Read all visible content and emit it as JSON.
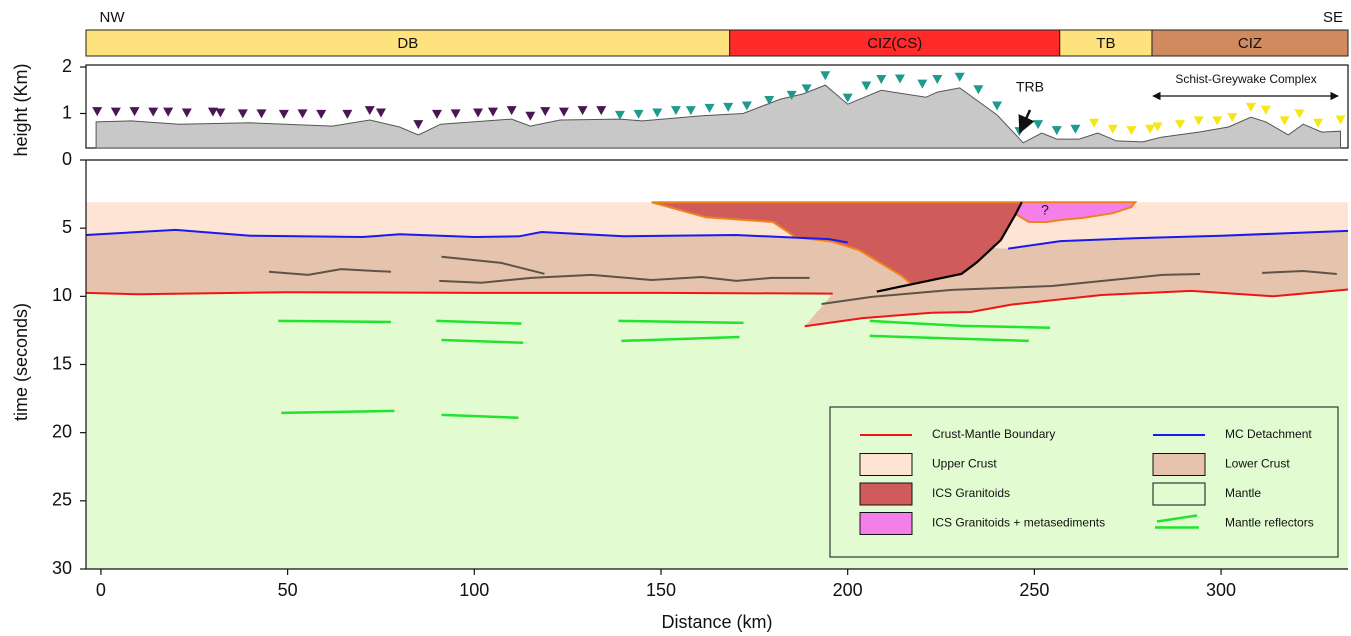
{
  "chart_data": {
    "type": "cross-section",
    "xlabel": "Distance (km)",
    "xlim": [
      -4,
      334
    ],
    "xticks": [
      0,
      50,
      100,
      150,
      200,
      250,
      300
    ],
    "left_label": "NW",
    "right_label": "SE",
    "zones": [
      {
        "label": "DB",
        "start": -4,
        "end": 168.4,
        "color": "#fde27e"
      },
      {
        "label": "CIZ(CS)",
        "start": 168.4,
        "end": 256.8,
        "color": "#ff2a2a"
      },
      {
        "label": "TB",
        "start": 256.8,
        "end": 281.5,
        "color": "#fde27e"
      },
      {
        "label": "CIZ",
        "start": 281.5,
        "end": 334,
        "color": "#d08a5e"
      }
    ],
    "topography": {
      "ylabel": "height (Km)",
      "ylim": [
        0,
        2
      ],
      "yticks": [
        0,
        1,
        2
      ],
      "color": "#c8c8c8",
      "trb_label": "TRB",
      "complex_label": "Schist-Greywake Complex",
      "x": [
        -1.3,
        8,
        21,
        40,
        62,
        72,
        80,
        85,
        91,
        110,
        115,
        123,
        139,
        145,
        161,
        172,
        182,
        188,
        194,
        200,
        209,
        221,
        224,
        230,
        240,
        247,
        252,
        256,
        262,
        267,
        272,
        279,
        284,
        294,
        302,
        308,
        312,
        318,
        322,
        327,
        332
      ],
      "values": [
        0.82,
        0.84,
        0.77,
        0.8,
        0.73,
        0.86,
        0.71,
        0.54,
        0.77,
        0.88,
        0.73,
        0.86,
        0.88,
        0.84,
        0.95,
        1.0,
        1.31,
        1.42,
        1.61,
        1.2,
        1.5,
        1.35,
        1.46,
        1.55,
        0.97,
        0.37,
        0.58,
        0.45,
        0.45,
        0.58,
        0.41,
        0.39,
        0.49,
        0.6,
        0.71,
        0.92,
        0.82,
        0.54,
        0.77,
        0.6,
        0.62
      ],
      "stations": [
        {
          "color": "#4b1654",
          "x": [
            -1,
            4,
            9,
            14,
            18,
            23,
            30,
            32,
            38,
            43,
            49,
            54,
            59,
            66,
            72,
            75,
            85,
            90,
            95,
            101,
            105,
            110,
            115,
            119,
            124,
            129,
            134
          ],
          "values": [
            1.03,
            1.02,
            1.03,
            1.02,
            1.02,
            1.0,
            1.02,
            1.0,
            0.98,
            0.98,
            0.97,
            0.98,
            0.97,
            0.97,
            1.05,
            1.0,
            0.75,
            0.97,
            0.98,
            1.0,
            1.02,
            1.05,
            0.93,
            1.03,
            1.02,
            1.05,
            1.05
          ]
        },
        {
          "color": "#1f9a8e",
          "x": [
            139,
            144,
            149,
            154,
            158,
            163,
            168,
            173,
            179,
            185,
            189,
            194,
            200,
            205,
            209,
            214,
            220,
            224,
            230,
            235,
            240,
            246,
            251,
            256,
            261
          ],
          "values": [
            0.95,
            0.97,
            1.0,
            1.05,
            1.05,
            1.1,
            1.12,
            1.15,
            1.27,
            1.38,
            1.52,
            1.8,
            1.32,
            1.58,
            1.72,
            1.73,
            1.62,
            1.72,
            1.77,
            1.5,
            1.15,
            0.6,
            0.75,
            0.62,
            0.65
          ]
        },
        {
          "color": "#f5e614",
          "x": [
            266,
            271,
            276,
            281,
            283,
            289,
            294,
            299,
            303,
            308,
            312,
            317,
            321,
            326,
            332
          ],
          "values": [
            0.78,
            0.65,
            0.62,
            0.65,
            0.7,
            0.75,
            0.83,
            0.83,
            0.9,
            1.12,
            1.06,
            0.83,
            0.98,
            0.78,
            0.85
          ]
        }
      ]
    },
    "section": {
      "ylabel": "time (seconds)",
      "ylim": [
        30,
        0
      ],
      "yticks": [
        5,
        10,
        15,
        20,
        25,
        30
      ],
      "question_label": "?",
      "edge_color": "#f0821e",
      "series": [
        {
          "name": "Crust-Mantle Boundary",
          "kind": "line",
          "color": "#f01414",
          "x": [
            -4,
            10,
            50,
            100,
            150,
            196,
            null,
            188.5,
            204,
            222.5,
            233,
            244,
            268,
            292,
            314,
            334
          ],
          "values": [
            9.75,
            9.85,
            9.7,
            9.75,
            9.75,
            9.8,
            null,
            12.2,
            11.6,
            11.2,
            11.15,
            10.6,
            9.9,
            9.6,
            10.0,
            9.5
          ]
        },
        {
          "name": "MC Detachment",
          "kind": "line",
          "color": "#1a1aee",
          "x": [
            -4,
            20,
            40,
            70,
            80,
            100,
            112,
            118,
            140,
            170,
            195,
            200,
            null,
            243,
            257,
            281,
            300,
            334
          ],
          "values": [
            5.5,
            5.13,
            5.55,
            5.65,
            5.45,
            5.65,
            5.6,
            5.28,
            5.6,
            5.5,
            5.8,
            6.05,
            null,
            6.5,
            5.95,
            5.7,
            5.55,
            5.2
          ]
        },
        {
          "name": "Upper Crust",
          "kind": "area",
          "color": "#fde4d4",
          "x": [
            -4,
            334,
            334,
            300,
            281,
            257,
            243,
            200,
            195,
            170,
            140,
            118,
            112,
            100,
            80,
            70,
            40,
            20,
            -4
          ],
          "values": [
            3.1,
            3.1,
            5.2,
            5.55,
            5.7,
            5.95,
            6.5,
            6.05,
            5.8,
            5.5,
            5.6,
            5.28,
            5.6,
            5.65,
            5.45,
            5.65,
            5.55,
            5.13,
            5.5
          ]
        },
        {
          "name": "Lower Crust",
          "kind": "area",
          "color": "#e6c3ad",
          "x": [
            -4,
            20,
            40,
            70,
            80,
            100,
            112,
            118,
            140,
            170,
            195,
            200,
            243,
            257,
            281,
            300,
            334,
            334,
            314,
            292,
            268,
            244,
            233,
            222.5,
            204,
            188.5,
            196,
            150,
            100,
            50,
            10,
            -4
          ],
          "values": [
            5.5,
            5.13,
            5.55,
            5.65,
            5.45,
            5.65,
            5.6,
            5.28,
            5.6,
            5.5,
            5.8,
            6.05,
            6.5,
            5.95,
            5.7,
            5.55,
            5.2,
            9.5,
            10.0,
            9.6,
            9.9,
            10.6,
            11.15,
            11.2,
            11.6,
            12.2,
            9.8,
            9.75,
            9.75,
            9.7,
            9.85,
            9.75
          ]
        },
        {
          "name": "ICS Granitoids",
          "kind": "area",
          "color": "#d05b5b",
          "edged": true,
          "x": [
            147.5,
            246.6,
            245,
            241,
            234.6,
            230.5,
            217,
            214.5,
            203,
            196,
            186,
            180,
            162
          ],
          "values": [
            3.1,
            3.1,
            3.96,
            5.87,
            7.5,
            8.35,
            9.1,
            8.5,
            6.6,
            6.0,
            5.65,
            4.55,
            4.2
          ]
        },
        {
          "name": "Mantle",
          "kind": "area",
          "color": "#e2fbd1",
          "x": [
            -4,
            10,
            50,
            100,
            150,
            196,
            188.5,
            204,
            222.5,
            233,
            244,
            268,
            292,
            314,
            334,
            334,
            -4
          ],
          "values": [
            9.75,
            9.85,
            9.7,
            9.75,
            9.75,
            9.8,
            12.2,
            11.6,
            11.2,
            11.15,
            10.6,
            9.9,
            9.6,
            10.0,
            9.5,
            30,
            30
          ]
        },
        {
          "name": "ICS Granitoids + metasediments",
          "kind": "area",
          "color": "#f57fe9",
          "edged": true,
          "x": [
            246.6,
            277,
            276,
            271,
            263,
            257,
            253.5,
            248.5,
            245
          ],
          "values": [
            3.1,
            3.1,
            3.45,
            3.9,
            4.25,
            4.4,
            4.55,
            4.55,
            3.96
          ]
        },
        {
          "name": "Mantle reflectors",
          "kind": "segments",
          "color": "#22e32e",
          "segments": [
            {
              "x": [
                47.5,
                77.7
              ],
              "values": [
                11.8,
                11.88
              ]
            },
            {
              "x": [
                89.8,
                112.6
              ],
              "values": [
                11.8,
                12.0
              ]
            },
            {
              "x": [
                91.2,
                113.1
              ],
              "values": [
                13.2,
                13.4
              ]
            },
            {
              "x": [
                138.6,
                172.1
              ],
              "values": [
                11.8,
                11.95
              ]
            },
            {
              "x": [
                139.4,
                171
              ],
              "values": [
                13.27,
                12.98
              ]
            },
            {
              "x": [
                205.9,
                230.6,
                254.2
              ],
              "values": [
                11.8,
                12.17,
                12.3
              ]
            },
            {
              "x": [
                205.9,
                248.5
              ],
              "values": [
                12.9,
                13.27
              ]
            },
            {
              "x": [
                48.3,
                78.6
              ],
              "values": [
                18.55,
                18.4
              ]
            },
            {
              "x": [
                91.2,
                111.8
              ],
              "values": [
                18.7,
                18.9
              ]
            }
          ]
        }
      ],
      "crust_reflectors": {
        "color": "#5c5446",
        "segments": [
          {
            "x": [
              45,
              55.5,
              64.3,
              77.7
            ],
            "values": [
              8.2,
              8.43,
              8.0,
              8.2
            ]
          },
          {
            "x": [
              91.2,
              107.2,
              118.8
            ],
            "values": [
              7.1,
              7.55,
              8.35
            ]
          },
          {
            "x": [
              90.6,
              101.9,
              115.3,
              131.4,
              147.5,
              160.9,
              170.2,
              179.6,
              189.8
            ],
            "values": [
              8.87,
              9.0,
              8.65,
              8.43,
              8.8,
              8.58,
              8.87,
              8.65,
              8.65
            ]
          },
          {
            "x": [
              193,
              206.4,
              227.9,
              254.7,
              284.2,
              294.4
            ],
            "values": [
              10.56,
              10.04,
              9.53,
              9.24,
              8.43,
              8.36
            ]
          },
          {
            "x": [
              311,
              322,
              331
            ],
            "values": [
              8.28,
              8.14,
              8.36
            ]
          }
        ]
      },
      "fault": {
        "color": "#000000",
        "x": [
          207.8,
          230.5,
          234.6,
          241,
          245,
          246.6
        ],
        "values": [
          9.65,
          8.35,
          7.5,
          5.87,
          3.96,
          3.1
        ]
      }
    }
  }
}
